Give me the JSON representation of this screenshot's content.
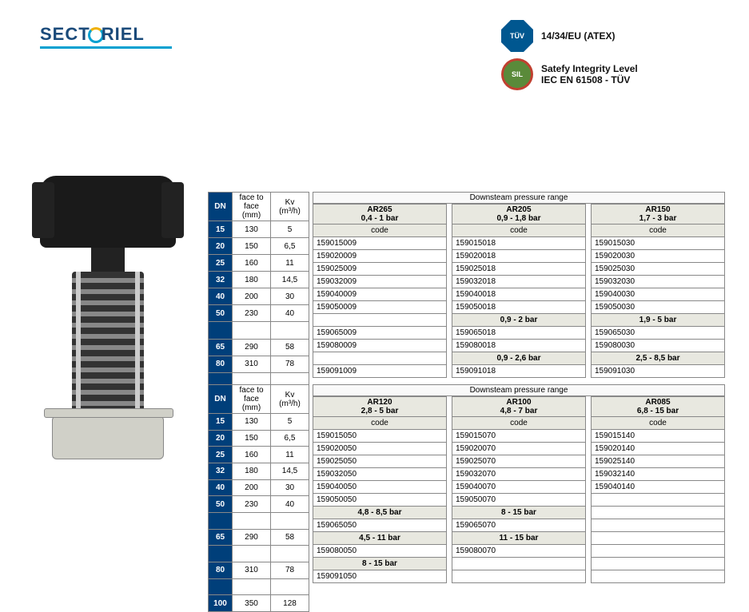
{
  "logo": {
    "text_left": "SECT",
    "text_right": "RIEL"
  },
  "certs": [
    {
      "icon": "tuv",
      "label": "14/34/EU (ATEX)"
    },
    {
      "icon": "sil",
      "label": "Satefy Integrity Level\nIEC EN 61508 - TÜV"
    }
  ],
  "dim_headers": {
    "dn": "DN",
    "f2f": "face to face\n(mm)",
    "kv": "Kv\n(m³/h)"
  },
  "pressure_header": "Downsteam pressure range",
  "code_label": "code",
  "dims": [
    {
      "dn": "15",
      "f2f": "130",
      "kv": "5"
    },
    {
      "dn": "20",
      "f2f": "150",
      "kv": "6,5"
    },
    {
      "dn": "25",
      "f2f": "160",
      "kv": "11"
    },
    {
      "dn": "32",
      "f2f": "180",
      "kv": "14,5"
    },
    {
      "dn": "40",
      "f2f": "200",
      "kv": "30"
    },
    {
      "dn": "50",
      "f2f": "230",
      "kv": "40"
    },
    {
      "dn": "65",
      "f2f": "290",
      "kv": "58"
    },
    {
      "dn": "80",
      "f2f": "310",
      "kv": "78"
    },
    {
      "dn": "100",
      "f2f": "350",
      "kv": "128"
    }
  ],
  "group1": [
    {
      "model": "AR265",
      "range": "0,4 - 1 bar",
      "cells": [
        "159015009",
        "159020009",
        "159025009",
        "159032009",
        "159040009",
        "159050009",
        "",
        "159065009",
        "159080009",
        "",
        "159091009"
      ]
    },
    {
      "model": "AR205",
      "range": "0,9 - 1,8 bar",
      "cells": [
        "159015018",
        "159020018",
        "159025018",
        "159032018",
        "159040018",
        "159050018",
        "0,9 - 2 bar",
        "159065018",
        "159080018",
        "0,9 - 2,6 bar",
        "159091018"
      ],
      "sub_idx": [
        6,
        9
      ]
    },
    {
      "model": "AR150",
      "range": "1,7 - 3 bar",
      "cells": [
        "159015030",
        "159020030",
        "159025030",
        "159032030",
        "159040030",
        "159050030",
        "1,9 - 5 bar",
        "159065030",
        "159080030",
        "2,5 - 8,5 bar",
        "159091030"
      ],
      "sub_idx": [
        6,
        9
      ]
    }
  ],
  "group2": [
    {
      "model": "AR120",
      "range": "2,8 - 5 bar",
      "cells": [
        "159015050",
        "159020050",
        "159025050",
        "159032050",
        "159040050",
        "159050050",
        "4,8 - 8,5 bar",
        "159065050",
        "4,5 - 11 bar",
        "159080050",
        "8 - 15 bar",
        "159091050"
      ],
      "sub_idx": [
        6,
        8,
        10
      ]
    },
    {
      "model": "AR100",
      "range": "4,8 - 7 bar",
      "cells": [
        "159015070",
        "159020070",
        "159025070",
        "159032070",
        "159040070",
        "159050070",
        "8 - 15 bar",
        "159065070",
        "11 - 15 bar",
        "159080070",
        "",
        ""
      ],
      "sub_idx": [
        6,
        8
      ]
    },
    {
      "model": "AR085",
      "range": "6,8 - 15 bar",
      "cells": [
        "159015140",
        "159020140",
        "159025140",
        "159032140",
        "159040140",
        "",
        "",
        "",
        "",
        "",
        "",
        ""
      ]
    }
  ],
  "colors": {
    "header_bg": "#003f7a",
    "header_fg": "#ffffff",
    "sub_bg": "#e8e8e0",
    "border": "#888888"
  }
}
